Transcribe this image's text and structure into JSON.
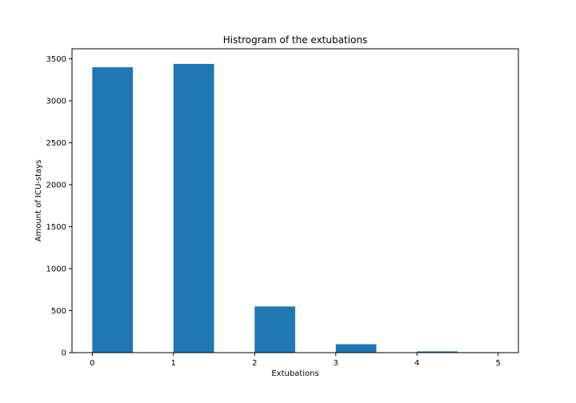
{
  "chart_data": {
    "type": "bar",
    "title": "Histrogram of the extubations",
    "xlabel": "Extubations",
    "ylabel": "Amount of ICU-stays",
    "bins": [
      {
        "start": 0.0,
        "end": 0.5,
        "value": 3400
      },
      {
        "start": 1.0,
        "end": 1.5,
        "value": 3440
      },
      {
        "start": 2.0,
        "end": 2.5,
        "value": 550
      },
      {
        "start": 3.0,
        "end": 3.5,
        "value": 100
      },
      {
        "start": 4.0,
        "end": 4.5,
        "value": 15
      },
      {
        "start": 4.5,
        "end": 5.0,
        "value": 5
      }
    ],
    "xticks": [
      "0",
      "1",
      "2",
      "3",
      "4",
      "5"
    ],
    "yticks": [
      "0",
      "500",
      "1000",
      "1500",
      "2000",
      "2500",
      "3000",
      "3500"
    ],
    "xlim": [
      -0.25,
      5.25
    ],
    "ylim": [
      0,
      3620
    ],
    "bar_color": "#1f77b4",
    "grid": false,
    "legend": "none"
  }
}
